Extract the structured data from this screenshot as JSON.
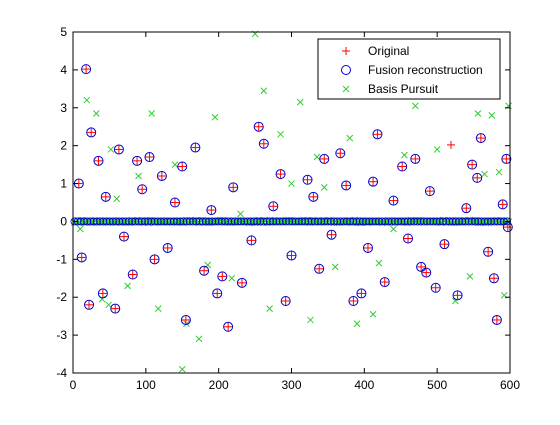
{
  "chart_data": {
    "type": "scatter",
    "xlim": [
      0,
      600
    ],
    "ylim": [
      -4,
      5
    ],
    "xticks": [
      0,
      100,
      200,
      300,
      400,
      500,
      600
    ],
    "yticks": [
      -4,
      -3,
      -2,
      -1,
      0,
      1,
      2,
      3,
      4,
      5
    ],
    "grid": false,
    "legend_position": "top-right",
    "series": [
      {
        "name": "Original",
        "marker": "plus",
        "color": "#ff0000",
        "points": [
          [
            18,
            4.02
          ],
          [
            25,
            2.35
          ],
          [
            12,
            -0.95
          ],
          [
            35,
            1.6
          ],
          [
            41,
            -1.9
          ],
          [
            58,
            -2.3
          ],
          [
            63,
            1.9
          ],
          [
            88,
            1.6
          ],
          [
            105,
            1.7
          ],
          [
            112,
            -1.0
          ],
          [
            150,
            1.45
          ],
          [
            155,
            -2.6
          ],
          [
            168,
            1.95
          ],
          [
            180,
            -1.3
          ],
          [
            198,
            -1.9
          ],
          [
            213,
            -2.78
          ],
          [
            232,
            -1.62
          ],
          [
            255,
            2.5
          ],
          [
            262,
            2.05
          ],
          [
            292,
            -2.1
          ],
          [
            322,
            1.1
          ],
          [
            345,
            1.65
          ],
          [
            367,
            1.8
          ],
          [
            385,
            -2.1
          ],
          [
            396,
            -1.9
          ],
          [
            418,
            2.3
          ],
          [
            428,
            -1.6
          ],
          [
            452,
            1.45
          ],
          [
            470,
            1.65
          ],
          [
            478,
            -1.2
          ],
          [
            498,
            -1.75
          ],
          [
            519,
            2.02
          ],
          [
            528,
            -1.95
          ],
          [
            548,
            1.5
          ],
          [
            560,
            2.2
          ],
          [
            578,
            -1.5
          ],
          [
            582,
            -2.6
          ],
          [
            595,
            1.65
          ],
          [
            597,
            -0.15
          ],
          [
            8,
            1.0
          ],
          [
            22,
            -2.2
          ],
          [
            45,
            0.65
          ],
          [
            70,
            -0.4
          ],
          [
            95,
            0.85
          ],
          [
            130,
            -0.7
          ],
          [
            140,
            0.5
          ],
          [
            190,
            0.3
          ],
          [
            220,
            0.9
          ],
          [
            245,
            -0.5
          ],
          [
            275,
            0.4
          ],
          [
            300,
            -0.9
          ],
          [
            330,
            0.65
          ],
          [
            355,
            -0.35
          ],
          [
            375,
            0.95
          ],
          [
            405,
            -0.7
          ],
          [
            440,
            0.55
          ],
          [
            460,
            -0.45
          ],
          [
            490,
            0.8
          ],
          [
            510,
            -0.6
          ],
          [
            540,
            0.35
          ],
          [
            570,
            -0.8
          ],
          [
            590,
            0.45
          ],
          [
            82,
            -1.4
          ],
          [
            122,
            1.2
          ],
          [
            205,
            -1.45
          ],
          [
            285,
            1.25
          ],
          [
            338,
            -1.25
          ],
          [
            412,
            1.05
          ],
          [
            485,
            -1.35
          ],
          [
            555,
            1.15
          ]
        ]
      },
      {
        "name": "Fusion reconstruction",
        "marker": "circle",
        "color": "#0000cc",
        "points": [
          [
            18,
            4.02
          ],
          [
            25,
            2.35
          ],
          [
            12,
            -0.95
          ],
          [
            35,
            1.6
          ],
          [
            41,
            -1.9
          ],
          [
            58,
            -2.3
          ],
          [
            63,
            1.9
          ],
          [
            88,
            1.6
          ],
          [
            105,
            1.7
          ],
          [
            112,
            -1.0
          ],
          [
            150,
            1.45
          ],
          [
            155,
            -2.6
          ],
          [
            168,
            1.95
          ],
          [
            180,
            -1.3
          ],
          [
            198,
            -1.9
          ],
          [
            213,
            -2.78
          ],
          [
            232,
            -1.62
          ],
          [
            255,
            2.5
          ],
          [
            262,
            2.05
          ],
          [
            292,
            -2.1
          ],
          [
            322,
            1.1
          ],
          [
            345,
            1.65
          ],
          [
            367,
            1.8
          ],
          [
            385,
            -2.1
          ],
          [
            396,
            -1.9
          ],
          [
            418,
            2.3
          ],
          [
            428,
            -1.6
          ],
          [
            452,
            1.45
          ],
          [
            470,
            1.65
          ],
          [
            478,
            -1.2
          ],
          [
            498,
            -1.75
          ],
          [
            528,
            -1.95
          ],
          [
            548,
            1.5
          ],
          [
            560,
            2.2
          ],
          [
            578,
            -1.5
          ],
          [
            582,
            -2.6
          ],
          [
            595,
            1.65
          ],
          [
            597,
            -0.15
          ],
          [
            8,
            1.0
          ],
          [
            22,
            -2.2
          ],
          [
            45,
            0.65
          ],
          [
            70,
            -0.4
          ],
          [
            95,
            0.85
          ],
          [
            130,
            -0.7
          ],
          [
            140,
            0.5
          ],
          [
            190,
            0.3
          ],
          [
            220,
            0.9
          ],
          [
            245,
            -0.5
          ],
          [
            275,
            0.4
          ],
          [
            300,
            -0.9
          ],
          [
            330,
            0.65
          ],
          [
            355,
            -0.35
          ],
          [
            375,
            0.95
          ],
          [
            405,
            -0.7
          ],
          [
            440,
            0.55
          ],
          [
            460,
            -0.45
          ],
          [
            490,
            0.8
          ],
          [
            510,
            -0.6
          ],
          [
            540,
            0.35
          ],
          [
            570,
            -0.8
          ],
          [
            590,
            0.45
          ],
          [
            82,
            -1.4
          ],
          [
            122,
            1.2
          ],
          [
            205,
            -1.45
          ],
          [
            285,
            1.25
          ],
          [
            338,
            -1.25
          ],
          [
            412,
            1.05
          ],
          [
            485,
            -1.35
          ],
          [
            555,
            1.15
          ]
        ]
      },
      {
        "name": "Basis Pursuit",
        "marker": "x",
        "color": "#33cc33",
        "points": [
          [
            19,
            3.2
          ],
          [
            32,
            2.85
          ],
          [
            40,
            -2.05
          ],
          [
            49,
            -2.2
          ],
          [
            52,
            1.9
          ],
          [
            90,
            1.2
          ],
          [
            108,
            2.85
          ],
          [
            117,
            -2.3
          ],
          [
            150,
            -3.9
          ],
          [
            156,
            -2.7
          ],
          [
            173,
            -3.1
          ],
          [
            195,
            2.75
          ],
          [
            218,
            -1.5
          ],
          [
            250,
            4.95
          ],
          [
            262,
            3.45
          ],
          [
            285,
            2.3
          ],
          [
            312,
            3.15
          ],
          [
            326,
            -2.6
          ],
          [
            335,
            1.7
          ],
          [
            380,
            2.2
          ],
          [
            390,
            -2.7
          ],
          [
            412,
            -2.45
          ],
          [
            440,
            -0.2
          ],
          [
            470,
            3.05
          ],
          [
            525,
            -2.1
          ],
          [
            556,
            2.85
          ],
          [
            565,
            1.25
          ],
          [
            575,
            2.8
          ],
          [
            592,
            -1.95
          ],
          [
            598,
            3.05
          ],
          [
            10,
            -0.2
          ],
          [
            60,
            0.6
          ],
          [
            140,
            1.5
          ],
          [
            230,
            0.2
          ],
          [
            300,
            1.0
          ],
          [
            360,
            -1.2
          ],
          [
            420,
            -1.1
          ],
          [
            500,
            1.9
          ],
          [
            545,
            -1.45
          ],
          [
            585,
            1.3
          ],
          [
            75,
            -1.7
          ],
          [
            185,
            -1.15
          ],
          [
            270,
            -2.3
          ],
          [
            345,
            0.9
          ],
          [
            455,
            1.75
          ]
        ]
      }
    ]
  }
}
